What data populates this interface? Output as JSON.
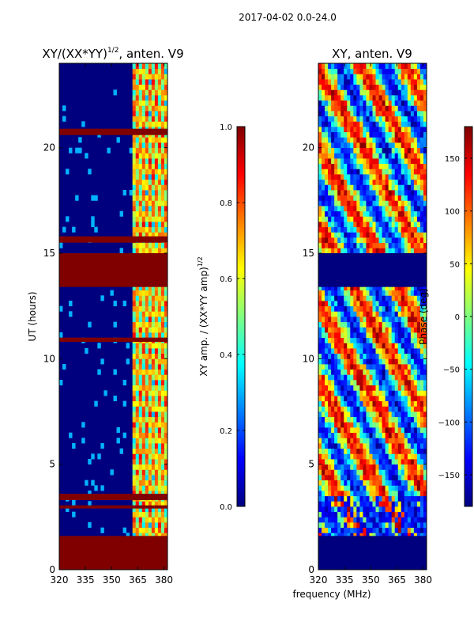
{
  "figure_title": "2017-04-02 0.0-24.0",
  "shared_xlabel": "frequency (MHz)",
  "colors": {
    "masked": "#800000",
    "background_low": "#00007f",
    "jet": [
      "#00007f",
      "#0000ff",
      "#007fff",
      "#00ffff",
      "#7fff7f",
      "#ffff00",
      "#ff7f00",
      "#ff0000",
      "#7f0000"
    ]
  },
  "chart_data": [
    {
      "type": "heatmap",
      "title_main": "XY/(XX*YY)",
      "title_exp": "1/2",
      "title_suffix": ", anten. V9",
      "xlabel": "",
      "ylabel": "UT (hours)",
      "xlim": [
        320,
        382
      ],
      "ylim": [
        0,
        24
      ],
      "xticks": [
        320,
        335,
        350,
        365,
        380
      ],
      "yticks": [
        0,
        5,
        10,
        15,
        20
      ],
      "colorbar": {
        "label_main": "XY amp. / (XX*YY amp)",
        "label_exp": "1/2",
        "range": [
          0.0,
          1.0
        ],
        "ticks": [
          "0.0",
          "0.2",
          "0.4",
          "0.6",
          "0.8",
          "1.0"
        ],
        "tick_values": [
          0.0,
          0.2,
          0.4,
          0.6,
          0.8,
          1.0
        ]
      },
      "masked_time_ranges_hours": [
        [
          0.0,
          1.6
        ],
        [
          3.3,
          3.6
        ],
        [
          2.9,
          3.05
        ],
        [
          13.4,
          15.0
        ],
        [
          15.5,
          15.8
        ],
        [
          20.6,
          20.9
        ],
        [
          10.8,
          11.0
        ]
      ],
      "notes": "normalized cross-correlation amplitude; high values concentrated at 362-382 MHz"
    },
    {
      "type": "heatmap",
      "title_main": "XY, anten. V9",
      "xlabel": "",
      "ylabel": "",
      "xlim": [
        320,
        382
      ],
      "ylim": [
        0,
        24
      ],
      "xticks": [
        320,
        335,
        350,
        365,
        380
      ],
      "yticks": [
        0,
        5,
        10,
        15,
        20
      ],
      "colorbar": {
        "label_main": "Phase (deg)",
        "range": [
          -180,
          180
        ],
        "ticks": [
          "150",
          "100",
          "50",
          "0",
          "−50",
          "−100",
          "−150"
        ],
        "tick_values": [
          150,
          100,
          50,
          0,
          -50,
          -100,
          -150
        ]
      },
      "masked_time_ranges_hours": [
        [
          0.0,
          1.6
        ],
        [
          13.4,
          15.0
        ]
      ],
      "notes": "XY phase in degrees; full jet range across band"
    }
  ]
}
